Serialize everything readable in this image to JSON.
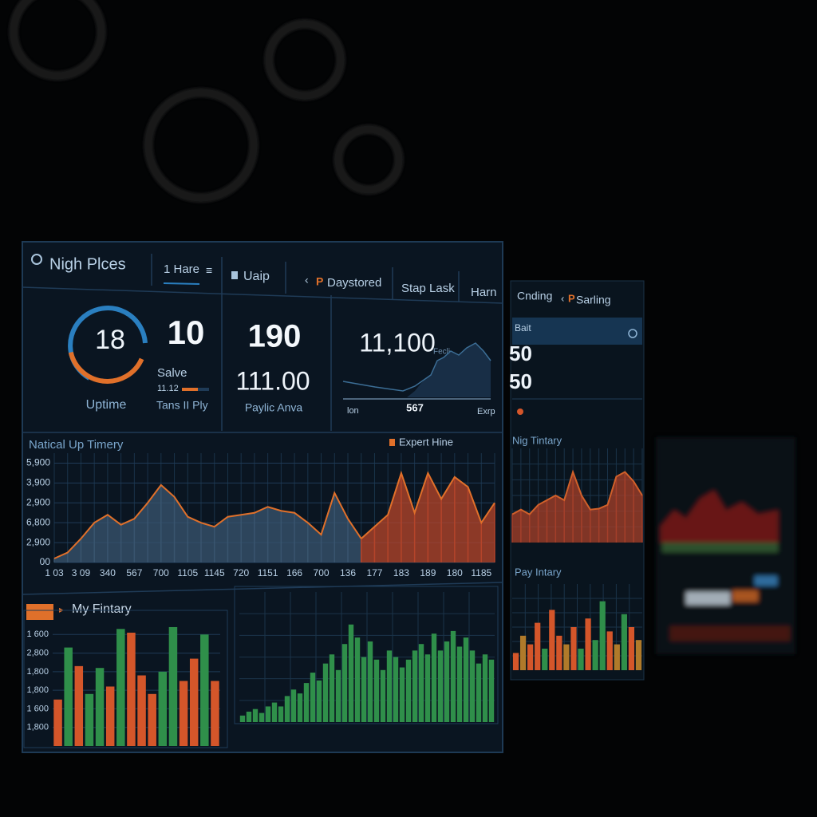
{
  "header": {
    "tabs": [
      "Nigh Plces",
      "1 Hare",
      "Uaip",
      "Daystored",
      "Stap Lask",
      "Harn"
    ],
    "tab_accent": "P"
  },
  "cards": {
    "gauge": {
      "value": "18",
      "label": "Uptime"
    },
    "stat": {
      "value": "10",
      "label": "Salve",
      "sub": "11.12",
      "caption": "Tans II Ply"
    },
    "payload": {
      "value": "190",
      "sub": "111.00",
      "caption": "Paylic Anva"
    },
    "trend": {
      "value": "11,100",
      "note": "Fecli",
      "left": "lon",
      "mid": "567",
      "right": "Exrp"
    }
  },
  "side": {
    "tabs": [
      "Cnding",
      "Sarling"
    ],
    "tab_accent": "P",
    "search": "Bait",
    "stats": [
      "50",
      "50"
    ]
  },
  "chart_data": [
    {
      "type": "area",
      "title": "Natical Up Timery",
      "categories": [
        "1 03",
        null,
        "3 09",
        null,
        "340",
        null,
        "567",
        null,
        "700",
        null,
        "1105",
        null,
        "1145",
        null,
        "720",
        null,
        "1151",
        null,
        "166",
        null,
        "700",
        null,
        "136",
        null,
        "177",
        null,
        "183",
        null,
        "189",
        null,
        "180",
        null,
        "1185",
        null
      ],
      "series": [
        {
          "name": "Expert Hine",
          "color": "#e0702a",
          "fill": "#3a5670",
          "values": [
            0.2,
            0.5,
            1.2,
            2.0,
            2.4,
            1.9,
            2.2,
            3.0,
            3.9,
            3.3,
            2.3,
            2.0,
            1.8,
            2.3,
            2.4,
            2.5,
            2.8,
            2.6,
            2.5,
            2.0,
            1.4,
            3.5,
            2.2,
            1.2,
            null,
            null,
            null,
            null,
            null,
            null,
            null,
            null,
            null,
            null
          ]
        },
        {
          "color": "#e0702a",
          "fill": "#b8452a",
          "values": [
            null,
            null,
            null,
            null,
            null,
            null,
            null,
            null,
            null,
            null,
            null,
            null,
            null,
            null,
            null,
            null,
            null,
            null,
            null,
            null,
            null,
            null,
            null,
            1.2,
            1.8,
            2.4,
            4.5,
            2.5,
            4.5,
            3.2,
            4.3,
            3.8,
            2.0,
            3.0
          ]
        }
      ],
      "ylim": [
        0,
        5.5
      ],
      "yticks": [
        {
          "value": 0,
          "label": "00"
        },
        {
          "value": 1,
          "label": "2,900"
        },
        {
          "value": 2,
          "label": "6,800"
        },
        {
          "value": 3,
          "label": "2,900"
        },
        {
          "value": 4,
          "label": "3,900"
        },
        {
          "value": 5,
          "label": "5,900"
        }
      ],
      "grid": true
    },
    {
      "type": "bar",
      "title": "My Fintary",
      "values": [
        2.5,
        5.3,
        4.3,
        2.8,
        4.2,
        3.2,
        6.3,
        6.1,
        3.8,
        2.8,
        4.0,
        6.4,
        3.5,
        4.7,
        6.0,
        3.5
      ],
      "colors": [
        "#d4562a",
        "#2f8f4a",
        "#d4562a",
        "#2f8f4a",
        "#2f8f4a",
        "#d4562a",
        "#2f8f4a",
        "#d4562a",
        "#d4562a",
        "#d4562a",
        "#2f8f4a",
        "#2f8f4a",
        "#d4562a",
        "#d4562a",
        "#2f8f4a",
        "#d4562a"
      ],
      "ylim": [
        0,
        7
      ],
      "yticks": [
        {
          "value": 1,
          "label": "1,800"
        },
        {
          "value": 2,
          "label": "1 600"
        },
        {
          "value": 3,
          "label": "1,800"
        },
        {
          "value": 4,
          "label": "1,800"
        },
        {
          "value": 5,
          "label": "2,800"
        },
        {
          "value": 6,
          "label": "1 600"
        }
      ],
      "grid": true
    },
    {
      "type": "bar",
      "values": [
        0.5,
        0.8,
        1,
        0.7,
        1.2,
        1.5,
        1.2,
        2,
        2.5,
        2.2,
        3,
        3.8,
        3.2,
        4.5,
        5.2,
        4,
        6,
        7.5,
        6.5,
        5,
        6.2,
        4.8,
        4,
        5.5,
        5,
        4.2,
        4.8,
        5.5,
        6,
        5.2,
        6.8,
        5.5,
        6.2,
        7,
        5.8,
        6.5,
        5.5,
        4.5,
        5.2,
        4.8
      ],
      "color": "#2f8f4a",
      "ylim": [
        0,
        10
      ],
      "grid": true
    },
    {
      "type": "area",
      "title": "Nig Tintary",
      "series": [
        {
          "color": "#d0602a",
          "fill": "#a8402a",
          "values": [
            3,
            3.5,
            3,
            4,
            4.5,
            5,
            4.5,
            7.5,
            5,
            3.5,
            3.6,
            4,
            7,
            7.5,
            6.5,
            5
          ]
        }
      ],
      "ylim": [
        0,
        10
      ],
      "grid": true
    },
    {
      "type": "bar",
      "title": "Pay Intary",
      "values": [
        2,
        4,
        3,
        5.5,
        2.5,
        7,
        4,
        3,
        5,
        2.5,
        6,
        3.5,
        8,
        4.5,
        3,
        6.5,
        5,
        3.5
      ],
      "colors": [
        "#d4562a",
        "#b07a2a",
        "#d4562a",
        "#d4562a",
        "#2f8f4a",
        "#d4562a",
        "#d4562a",
        "#b07a2a",
        "#d4562a",
        "#2f8f4a",
        "#d4562a",
        "#2f8f4a",
        "#2f8f4a",
        "#d4562a",
        "#b07a2a",
        "#2f8f4a",
        "#d4562a",
        "#b07a2a"
      ],
      "ylim": [
        0,
        10
      ],
      "grid": true
    }
  ]
}
